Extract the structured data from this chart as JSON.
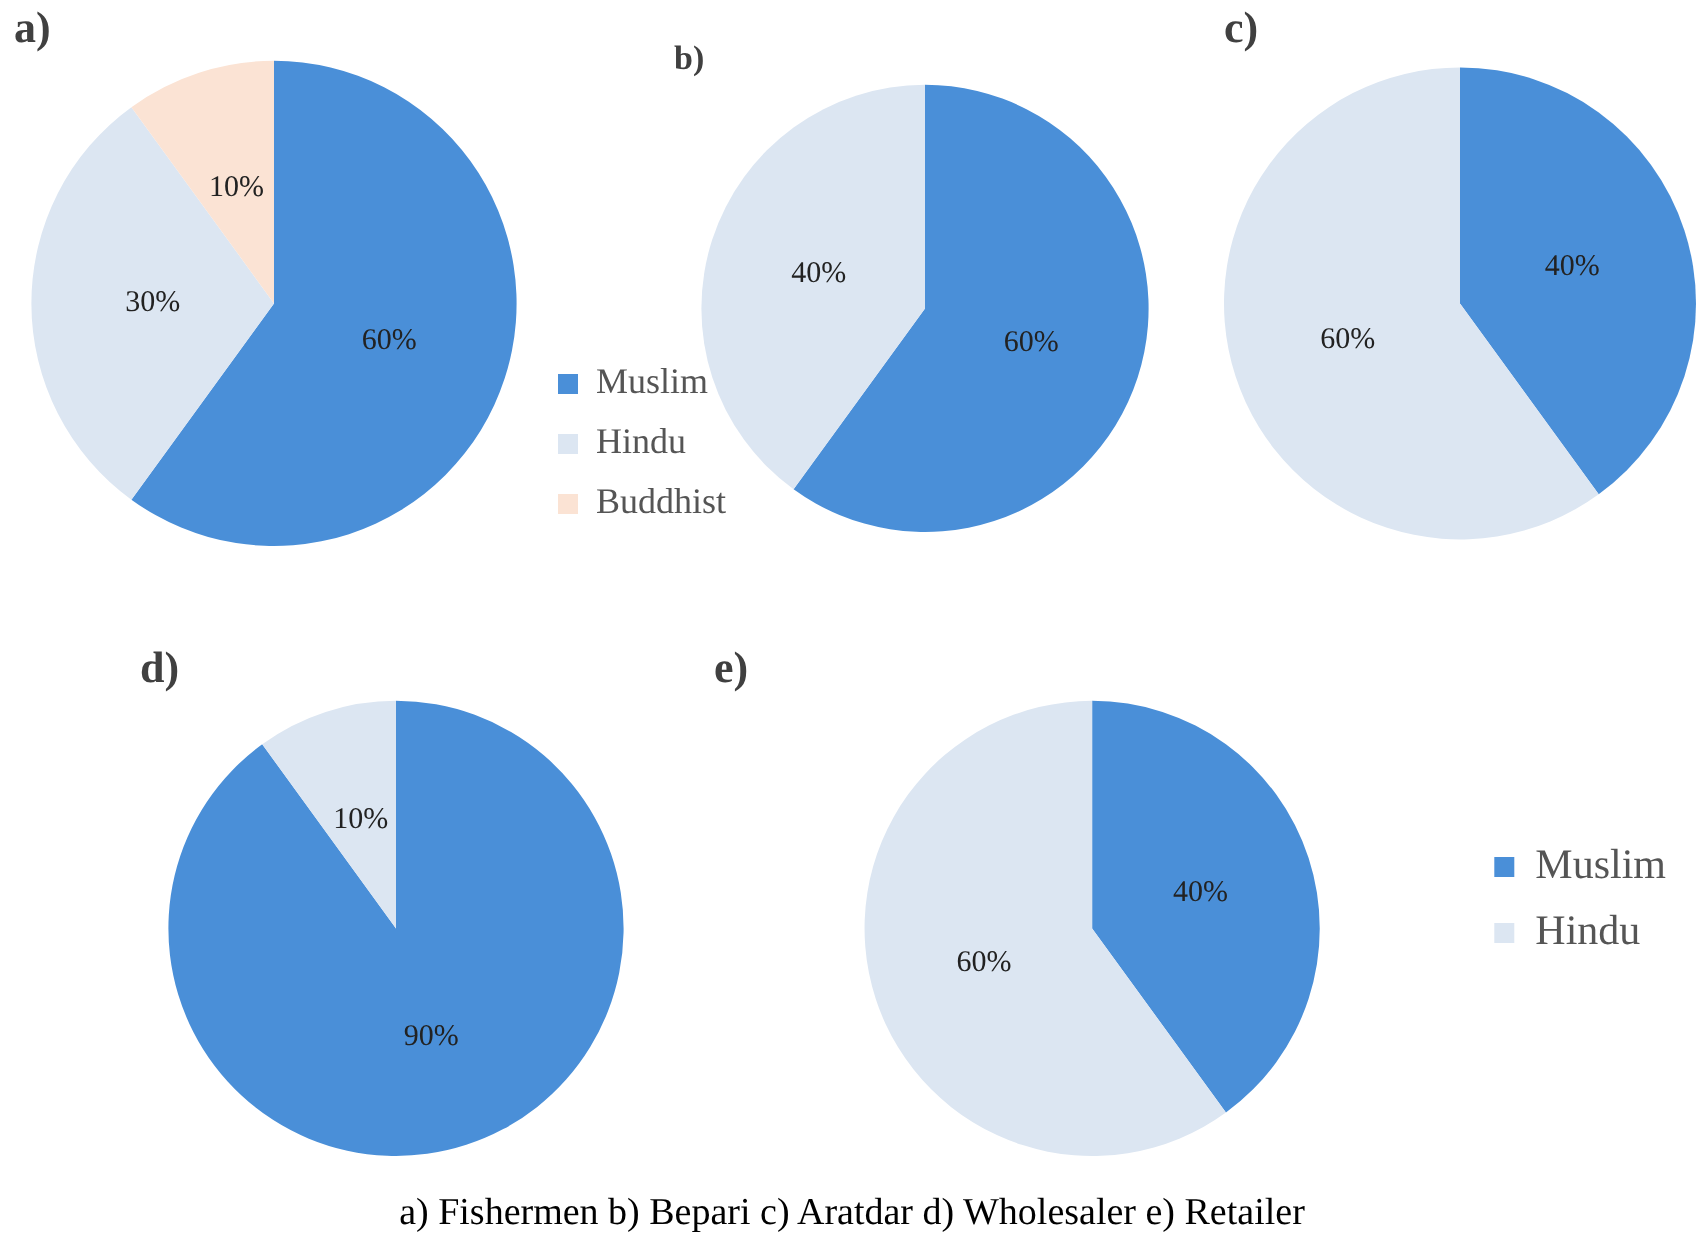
{
  "chart_data": [
    {
      "type": "pie",
      "title": "a)",
      "categories": [
        "Muslim",
        "Hindu",
        "Buddhist"
      ],
      "values": [
        60,
        30,
        10
      ],
      "colors": [
        "#4a8fd8",
        "#dce6f2",
        "#fbe3d4"
      ],
      "value_labels": [
        "60%",
        "30%",
        "10%"
      ],
      "legend": "bottom right"
    },
    {
      "type": "pie",
      "title": "b)",
      "categories": [
        null,
        null
      ],
      "values": [
        60,
        40
      ],
      "colors": [
        "#4a8fd8",
        "#dce6f2"
      ],
      "value_labels": [
        "60%",
        "40%"
      ]
    },
    {
      "type": "pie",
      "title": "c)",
      "categories": [
        null,
        null
      ],
      "values": [
        40,
        60
      ],
      "colors": [
        "#4a8fd8",
        "#dce6f2"
      ],
      "value_labels": [
        "40%",
        "60%"
      ]
    },
    {
      "type": "pie",
      "title": "d)",
      "categories": [
        null,
        null
      ],
      "values": [
        90,
        10
      ],
      "colors": [
        "#4a8fd8",
        "#dce6f2"
      ],
      "value_labels": [
        "90%",
        "10%"
      ]
    },
    {
      "type": "pie",
      "title": "e)",
      "categories": [
        "Muslim",
        "Hindu"
      ],
      "values": [
        40,
        60
      ],
      "colors": [
        "#4a8fd8",
        "#dce6f2"
      ],
      "value_labels": [
        "40%",
        "60%"
      ],
      "legend": "right",
      "annotations": [
        "a) Fishermen b) Bepari c) Aratdar  d) Wholesaler e) Retailer"
      ]
    }
  ]
}
